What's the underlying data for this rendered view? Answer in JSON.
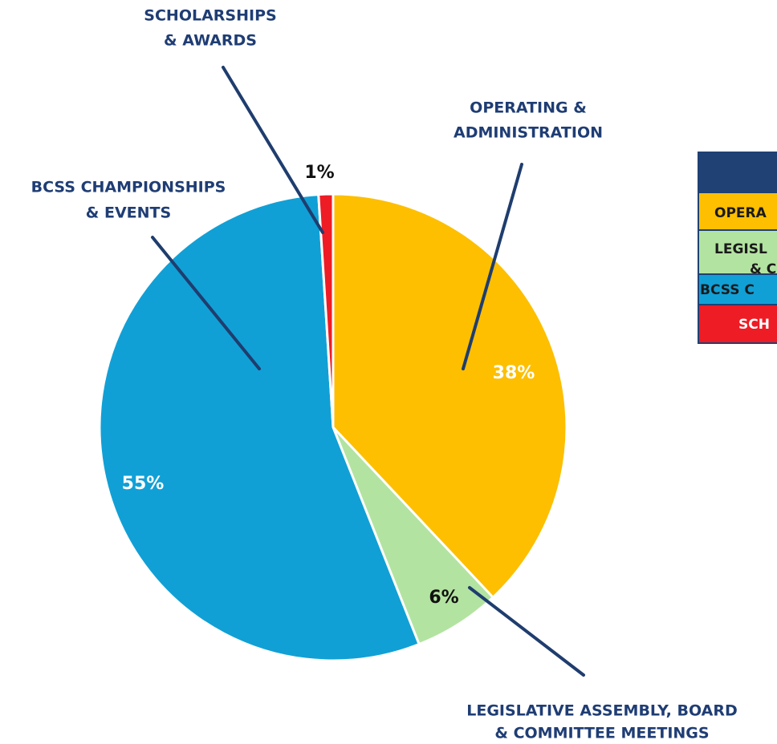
{
  "chart_data": {
    "type": "pie",
    "categories": [
      [
        "OPERATING &",
        "ADMINISTRATION"
      ],
      [
        "LEGISLATIVE ASSEMBLY, BOARD",
        "& COMMITTEE MEETINGS"
      ],
      [
        "BCSS CHAMPIONSHIPS",
        "& EVENTS"
      ],
      [
        "SCHOLARSHIPS",
        "& AWARDS"
      ]
    ],
    "values": [
      38,
      6,
      55,
      1
    ],
    "value_labels": [
      "38%",
      "6%",
      "55%",
      "1%"
    ],
    "colors": [
      "#fdbf00",
      "#b3e3a1",
      "#10a0d6",
      "#ee1c25"
    ]
  },
  "table": {
    "rows": [
      [
        "OPERA"
      ],
      [
        "LEGISL",
        "& C"
      ],
      [
        "BCSS C"
      ],
      [
        "SCH"
      ]
    ]
  }
}
